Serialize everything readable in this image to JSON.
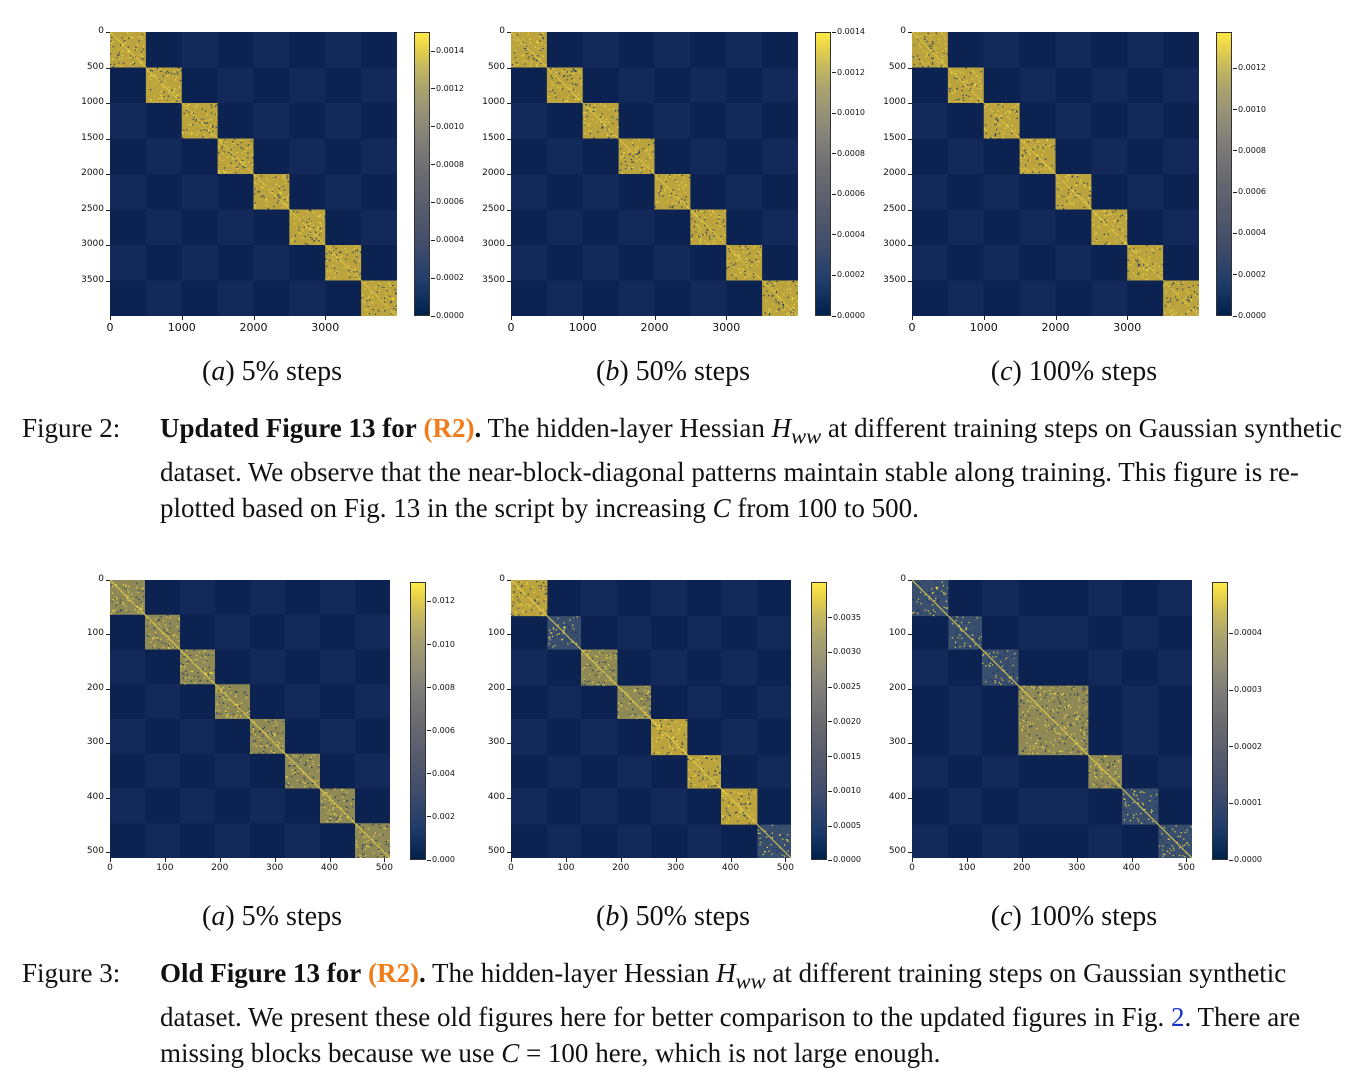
{
  "figure2": {
    "panels": [
      {
        "letter": "a",
        "label": "5% steps",
        "y_ticks": [
          "0",
          "500",
          "1000",
          "1500",
          "2000",
          "2500",
          "3000",
          "3500"
        ],
        "x_ticks": [
          "0",
          "1000",
          "2000",
          "3000"
        ],
        "cbar_ticks": [
          "0.0014",
          "0.0012",
          "0.0010",
          "0.0008",
          "0.0006",
          "0.0004",
          "0.0002",
          "0.0000"
        ]
      },
      {
        "letter": "b",
        "label": "50% steps",
        "y_ticks": [
          "0",
          "500",
          "1000",
          "1500",
          "2000",
          "2500",
          "3000",
          "3500"
        ],
        "x_ticks": [
          "0",
          "1000",
          "2000",
          "3000"
        ],
        "cbar_ticks": [
          "0.0014",
          "0.0012",
          "0.0010",
          "0.0008",
          "0.0006",
          "0.0004",
          "0.0002",
          "0.0000"
        ]
      },
      {
        "letter": "c",
        "label": "100% steps",
        "y_ticks": [
          "0",
          "500",
          "1000",
          "1500",
          "2000",
          "2500",
          "3000",
          "3500"
        ],
        "x_ticks": [
          "0",
          "1000",
          "2000",
          "3000"
        ],
        "cbar_ticks": [
          "0.0012",
          "0.0010",
          "0.0008",
          "0.0006",
          "0.0004",
          "0.0002",
          "0.0000"
        ]
      }
    ],
    "caption": {
      "label": "Figure 2:",
      "bold_start": "Updated Figure 13 for",
      "ref": "(R2)",
      "bold_end": ".",
      "text_1": " The hidden-layer Hessian ",
      "math": "H",
      "math_sub": "ww",
      "text_2": " at different training steps on Gaussian synthetic dataset. We observe that the near-block-diagonal patterns maintain stable along training. This figure is re-plotted based on Fig. 13 in the script by increasing ",
      "math_c": "C",
      "text_3": " from 100 to 500."
    }
  },
  "figure3": {
    "panels": [
      {
        "letter": "a",
        "label": "5% steps",
        "y_ticks": [
          "0",
          "100",
          "200",
          "300",
          "400",
          "500"
        ],
        "x_ticks": [
          "0",
          "100",
          "200",
          "300",
          "400",
          "500"
        ],
        "cbar_ticks": [
          "0.012",
          "0.010",
          "0.008",
          "0.006",
          "0.004",
          "0.002",
          "0.000"
        ]
      },
      {
        "letter": "b",
        "label": "50% steps",
        "y_ticks": [
          "0",
          "100",
          "200",
          "300",
          "400",
          "500"
        ],
        "x_ticks": [
          "0",
          "100",
          "200",
          "300",
          "400",
          "500"
        ],
        "cbar_ticks": [
          "0.0035",
          "0.0030",
          "0.0025",
          "0.0020",
          "0.0015",
          "0.0010",
          "0.0005",
          "0.0000"
        ]
      },
      {
        "letter": "c",
        "label": "100% steps",
        "y_ticks": [
          "0",
          "100",
          "200",
          "300",
          "400",
          "500"
        ],
        "x_ticks": [
          "0",
          "100",
          "200",
          "300",
          "400",
          "500"
        ],
        "cbar_ticks": [
          "0.0004",
          "0.0003",
          "0.0002",
          "0.0001",
          "0.0000"
        ]
      }
    ],
    "caption": {
      "label": "Figure 3:",
      "bold_start": "Old Figure 13 for",
      "ref": "(R2)",
      "bold_end": ".",
      "text_1": " The hidden-layer Hessian ",
      "math": "H",
      "math_sub": "ww",
      "text_2": " at different training steps on Gaussian synthetic dataset. We present these old figures here for better comparison to the updated figures in Fig. ",
      "fig_link": "2",
      "text_3": ". There are missing blocks because we use ",
      "math_c": "C",
      "math_eq": " = 100",
      "text_4": " here, which is not large enough."
    }
  },
  "colors": {
    "heat_bg": "#0e2452",
    "block": "#c8b33a",
    "ref_orange": "#f07c1b",
    "link_blue": "#1a33cc"
  }
}
